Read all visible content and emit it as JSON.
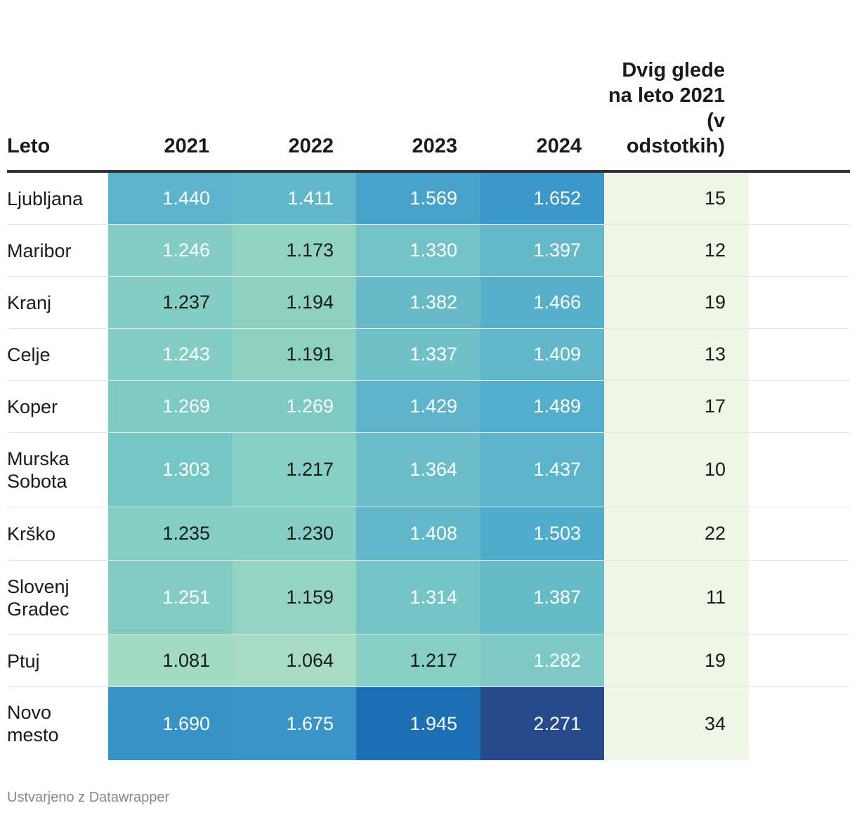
{
  "header": {
    "label": "Leto",
    "years": [
      "2021",
      "2022",
      "2023",
      "2024"
    ],
    "change": "Dvig glede na leto 2021 (v odstotkih)"
  },
  "footer": "Ustvarjeno z Datawrapper",
  "chart_data": {
    "type": "table",
    "title": "",
    "columns": [
      "Leto",
      "2021",
      "2022",
      "2023",
      "2024",
      "Dvig glede na leto 2021 (v odstotkih)"
    ],
    "rows": [
      {
        "city": "Ljubljana",
        "values": [
          "1.440",
          "1.411",
          "1.569",
          "1.652"
        ],
        "change": "15"
      },
      {
        "city": "Maribor",
        "values": [
          "1.246",
          "1.173",
          "1.330",
          "1.397"
        ],
        "change": "12"
      },
      {
        "city": "Kranj",
        "values": [
          "1.237",
          "1.194",
          "1.382",
          "1.466"
        ],
        "change": "19"
      },
      {
        "city": "Celje",
        "values": [
          "1.243",
          "1.191",
          "1.337",
          "1.409"
        ],
        "change": "13"
      },
      {
        "city": "Koper",
        "values": [
          "1.269",
          "1.269",
          "1.429",
          "1.489"
        ],
        "change": "17"
      },
      {
        "city": "Murska Sobota",
        "values": [
          "1.303",
          "1.217",
          "1.364",
          "1.437"
        ],
        "change": "10"
      },
      {
        "city": "Krško",
        "values": [
          "1.235",
          "1.230",
          "1.408",
          "1.503"
        ],
        "change": "22"
      },
      {
        "city": "Slovenj Gradec",
        "values": [
          "1.251",
          "1.159",
          "1.314",
          "1.387"
        ],
        "change": "11"
      },
      {
        "city": "Ptuj",
        "values": [
          "1.081",
          "1.064",
          "1.217",
          "1.282"
        ],
        "change": "19"
      },
      {
        "city": "Novo mesto",
        "values": [
          "1.690",
          "1.675",
          "1.945",
          "2.271"
        ],
        "change": "34"
      }
    ],
    "color_scale": {
      "min": 1.064,
      "max": 2.271,
      "stops": [
        "#a6dcc2",
        "#7fcbc4",
        "#56b0cc",
        "#3a96c8",
        "#1f78b8",
        "#1461a8",
        "#264a8c"
      ]
    }
  }
}
